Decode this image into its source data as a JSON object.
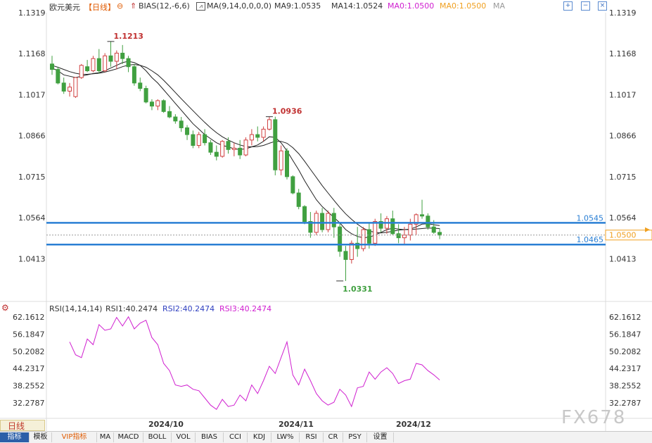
{
  "header": {
    "symbol": "欧元美元",
    "period": "【日线】",
    "bias_label": "BIAS(12,-6,6)",
    "ma_label": "MA(9,14,0,0,0,0)",
    "ma9": "MA9:1.0535",
    "ma14": "MA14:1.0524",
    "ma0a": "MA0:1.0500",
    "ma0b": "MA0:1.0500",
    "ma_tail": "MA",
    "colors": {
      "ma9": "#222222",
      "ma14": "#222222",
      "ma0a": "#d020d0",
      "ma0b": "#f0a020",
      "period": "#e05a00"
    }
  },
  "chart_data": [
    {
      "type": "candlestick",
      "title": "欧元美元",
      "y_ticks": [
        "1.1319",
        "1.1168",
        "1.1017",
        "1.0866",
        "1.0715",
        "1.0564",
        "1.0413"
      ],
      "y_tick_values": [
        1.1319,
        1.1168,
        1.1017,
        1.0866,
        1.0715,
        1.0564,
        1.0413
      ],
      "ylim": [
        1.031,
        1.1319
      ],
      "up_color": "#d04040",
      "down_color": "#40a040",
      "x_ticks": [
        "2024/10",
        "2024/11",
        "2024/12"
      ],
      "candles": [
        {
          "o": 1.113,
          "h": 1.116,
          "l": 1.109,
          "c": 1.111
        },
        {
          "o": 1.111,
          "h": 1.112,
          "l": 1.1055,
          "c": 1.106
        },
        {
          "o": 1.106,
          "h": 1.108,
          "l": 1.102,
          "c": 1.103
        },
        {
          "o": 1.103,
          "h": 1.106,
          "l": 1.101,
          "c": 1.1045
        },
        {
          "o": 1.101,
          "h": 1.107,
          "l": 1.1005,
          "c": 1.108
        },
        {
          "o": 1.108,
          "h": 1.113,
          "l": 1.1075,
          "c": 1.1125
        },
        {
          "o": 1.112,
          "h": 1.1145,
          "l": 1.11,
          "c": 1.1105
        },
        {
          "o": 1.1105,
          "h": 1.116,
          "l": 1.11,
          "c": 1.115
        },
        {
          "o": 1.115,
          "h": 1.1185,
          "l": 1.1095,
          "c": 1.1105
        },
        {
          "o": 1.1105,
          "h": 1.117,
          "l": 1.11,
          "c": 1.116
        },
        {
          "o": 1.116,
          "h": 1.1213,
          "l": 1.112,
          "c": 1.114
        },
        {
          "o": 1.114,
          "h": 1.118,
          "l": 1.111,
          "c": 1.117
        },
        {
          "o": 1.117,
          "h": 1.12,
          "l": 1.113,
          "c": 1.115
        },
        {
          "o": 1.115,
          "h": 1.116,
          "l": 1.11,
          "c": 1.112
        },
        {
          "o": 1.112,
          "h": 1.113,
          "l": 1.105,
          "c": 1.106
        },
        {
          "o": 1.106,
          "h": 1.108,
          "l": 1.103,
          "c": 1.104
        },
        {
          "o": 1.104,
          "h": 1.105,
          "l": 1.0985,
          "c": 1.099
        },
        {
          "o": 1.099,
          "h": 1.1,
          "l": 1.096,
          "c": 1.0975
        },
        {
          "o": 1.0975,
          "h": 1.1,
          "l": 1.096,
          "c": 1.0995
        },
        {
          "o": 1.0995,
          "h": 1.1,
          "l": 1.095,
          "c": 1.0955
        },
        {
          "o": 1.0955,
          "h": 1.0975,
          "l": 1.093,
          "c": 1.0935
        },
        {
          "o": 1.0935,
          "h": 1.0945,
          "l": 1.091,
          "c": 1.092
        },
        {
          "o": 1.092,
          "h": 1.0935,
          "l": 1.088,
          "c": 1.0895
        },
        {
          "o": 1.0895,
          "h": 1.0905,
          "l": 1.085,
          "c": 1.087
        },
        {
          "o": 1.087,
          "h": 1.0885,
          "l": 1.082,
          "c": 1.083
        },
        {
          "o": 1.083,
          "h": 1.088,
          "l": 1.082,
          "c": 1.087
        },
        {
          "o": 1.087,
          "h": 1.089,
          "l": 1.083,
          "c": 1.084
        },
        {
          "o": 1.084,
          "h": 1.085,
          "l": 1.0795,
          "c": 1.0805
        },
        {
          "o": 1.0805,
          "h": 1.083,
          "l": 1.0775,
          "c": 1.079
        },
        {
          "o": 1.079,
          "h": 1.085,
          "l": 1.0785,
          "c": 1.0845
        },
        {
          "o": 1.0845,
          "h": 1.086,
          "l": 1.08,
          "c": 1.0815
        },
        {
          "o": 1.0815,
          "h": 1.084,
          "l": 1.079,
          "c": 1.082
        },
        {
          "o": 1.082,
          "h": 1.085,
          "l": 1.078,
          "c": 1.0795
        },
        {
          "o": 1.0795,
          "h": 1.086,
          "l": 1.079,
          "c": 1.085
        },
        {
          "o": 1.085,
          "h": 1.089,
          "l": 1.083,
          "c": 1.087
        },
        {
          "o": 1.087,
          "h": 1.09,
          "l": 1.0845,
          "c": 1.086
        },
        {
          "o": 1.086,
          "h": 1.09,
          "l": 1.0845,
          "c": 1.089
        },
        {
          "o": 1.089,
          "h": 1.0936,
          "l": 1.0885,
          "c": 1.0925
        },
        {
          "o": 1.0925,
          "h": 1.0936,
          "l": 1.072,
          "c": 1.074
        },
        {
          "o": 1.074,
          "h": 1.083,
          "l": 1.072,
          "c": 1.081
        },
        {
          "o": 1.081,
          "h": 1.082,
          "l": 1.0705,
          "c": 1.0715
        },
        {
          "o": 1.0715,
          "h": 1.072,
          "l": 1.065,
          "c": 1.0655
        },
        {
          "o": 1.0655,
          "h": 1.067,
          "l": 1.0595,
          "c": 1.0605
        },
        {
          "o": 1.0605,
          "h": 1.061,
          "l": 1.054,
          "c": 1.055
        },
        {
          "o": 1.055,
          "h": 1.0585,
          "l": 1.049,
          "c": 1.051
        },
        {
          "o": 1.051,
          "h": 1.059,
          "l": 1.05,
          "c": 1.058
        },
        {
          "o": 1.058,
          "h": 1.06,
          "l": 1.051,
          "c": 1.052
        },
        {
          "o": 1.052,
          "h": 1.059,
          "l": 1.051,
          "c": 1.058
        },
        {
          "o": 1.058,
          "h": 1.06,
          "l": 1.049,
          "c": 1.053
        },
        {
          "o": 1.053,
          "h": 1.0545,
          "l": 1.042,
          "c": 1.044
        },
        {
          "o": 1.044,
          "h": 1.046,
          "l": 1.0331,
          "c": 1.041
        },
        {
          "o": 1.041,
          "h": 1.048,
          "l": 1.0395,
          "c": 1.047
        },
        {
          "o": 1.047,
          "h": 1.053,
          "l": 1.042,
          "c": 1.045
        },
        {
          "o": 1.045,
          "h": 1.053,
          "l": 1.044,
          "c": 1.052
        },
        {
          "o": 1.052,
          "h": 1.0545,
          "l": 1.045,
          "c": 1.047
        },
        {
          "o": 1.047,
          "h": 1.056,
          "l": 1.046,
          "c": 1.055
        },
        {
          "o": 1.055,
          "h": 1.058,
          "l": 1.051,
          "c": 1.0525
        },
        {
          "o": 1.0525,
          "h": 1.057,
          "l": 1.0505,
          "c": 1.056
        },
        {
          "o": 1.056,
          "h": 1.059,
          "l": 1.05,
          "c": 1.0505
        },
        {
          "o": 1.0505,
          "h": 1.054,
          "l": 1.047,
          "c": 1.049
        },
        {
          "o": 1.049,
          "h": 1.053,
          "l": 1.0465,
          "c": 1.05
        },
        {
          "o": 1.05,
          "h": 1.056,
          "l": 1.048,
          "c": 1.054
        },
        {
          "o": 1.054,
          "h": 1.058,
          "l": 1.05,
          "c": 1.0575
        },
        {
          "o": 1.0575,
          "h": 1.063,
          "l": 1.056,
          "c": 1.057
        },
        {
          "o": 1.057,
          "h": 1.058,
          "l": 1.052,
          "c": 1.053
        },
        {
          "o": 1.053,
          "h": 1.0555,
          "l": 1.0505,
          "c": 1.051
        },
        {
          "o": 1.051,
          "h": 1.0525,
          "l": 1.0485,
          "c": 1.05
        }
      ],
      "ma9": [
        1.1115,
        1.1105,
        1.109,
        1.1085,
        1.108,
        1.1085,
        1.109,
        1.1095,
        1.1098,
        1.1105,
        1.1115,
        1.1125,
        1.1135,
        1.114,
        1.1135,
        1.1125,
        1.1105,
        1.108,
        1.106,
        1.1035,
        1.101,
        1.0985,
        1.096,
        1.0935,
        1.091,
        1.089,
        1.087,
        1.0855,
        1.084,
        1.083,
        1.0825,
        1.0818,
        1.0815,
        1.0818,
        1.0825,
        1.0832,
        1.0845,
        1.0862,
        1.086,
        1.084,
        1.081,
        1.0775,
        1.074,
        1.07,
        1.0665,
        1.063,
        1.0605,
        1.0585,
        1.0565,
        1.0545,
        1.052,
        1.0505,
        1.0495,
        1.049,
        1.0492,
        1.05,
        1.051,
        1.052,
        1.0525,
        1.0522,
        1.052,
        1.0522,
        1.053,
        1.054,
        1.0542,
        1.0538,
        1.0535
      ],
      "ma14": [
        1.1125,
        1.1118,
        1.111,
        1.1102,
        1.1096,
        1.1092,
        1.1092,
        1.1094,
        1.1096,
        1.11,
        1.1106,
        1.1112,
        1.112,
        1.1126,
        1.1128,
        1.1125,
        1.1118,
        1.1105,
        1.109,
        1.107,
        1.1048,
        1.1025,
        1.1002,
        1.098,
        1.0958,
        1.0936,
        1.0915,
        1.0895,
        1.0877,
        1.0862,
        1.085,
        1.084,
        1.0832,
        1.0826,
        1.0825,
        1.0826,
        1.083,
        1.0838,
        1.0845,
        1.0845,
        1.0838,
        1.0822,
        1.08,
        1.0772,
        1.0742,
        1.0712,
        1.0682,
        1.0655,
        1.0628,
        1.0602,
        1.0578,
        1.0558,
        1.054,
        1.0525,
        1.0515,
        1.051,
        1.0508,
        1.051,
        1.0514,
        1.0518,
        1.052,
        1.052,
        1.0522,
        1.0524,
        1.0526,
        1.0525,
        1.0524
      ],
      "annotations": [
        {
          "label": "1.1213",
          "value": 1.1213,
          "index": 10
        },
        {
          "label": "1.0936",
          "value": 1.0936,
          "index": 37
        },
        {
          "label": "1.0331",
          "value": 1.0331,
          "index": 49
        }
      ],
      "hlines": [
        {
          "label": "1.0545",
          "value": 1.0545,
          "color": "#2a7fd4"
        },
        {
          "label": "1.0465",
          "value": 1.0465,
          "color": "#2a7fd4"
        }
      ],
      "current_price": {
        "label": "1.0500",
        "value": 1.05,
        "color": "#f0a020"
      }
    },
    {
      "type": "line",
      "title": "RSI(14,14,14)",
      "legend": [
        "RSI1:40.2474",
        "RSI2:40.2474",
        "RSI3:40.2474"
      ],
      "legend_colors": [
        "#222222",
        "#3040c0",
        "#d020d0"
      ],
      "y_ticks": [
        "62.1612",
        "56.1847",
        "50.2082",
        "44.2317",
        "38.2552",
        "32.2787"
      ],
      "y_tick_values": [
        62.1612,
        56.1847,
        50.2082,
        44.2317,
        38.2552,
        32.2787
      ],
      "ylim": [
        28.0,
        63.0
      ],
      "series": [
        {
          "name": "RSI3",
          "color": "#d020d0",
          "values": [
            53.5,
            49.0,
            48.0,
            54.5,
            52.5,
            59.5,
            57.5,
            58.0,
            62.0,
            59.0,
            62.2,
            58.0,
            60.0,
            61.0,
            55.0,
            52.5,
            46.0,
            43.5,
            38.5,
            38.0,
            38.5,
            37.0,
            36.5,
            34.0,
            31.5,
            30.0,
            33.5,
            31.0,
            31.5,
            35.0,
            33.0,
            38.5,
            35.5,
            40.0,
            45.0,
            42.5,
            48.0,
            53.5,
            42.0,
            38.5,
            44.0,
            40.0,
            35.5,
            33.0,
            31.5,
            32.5,
            37.0,
            35.0,
            31.0,
            37.5,
            38.0,
            43.0,
            40.5,
            43.0,
            44.5,
            42.5,
            39.0,
            40.0,
            40.5,
            46.0,
            45.5,
            43.5,
            42.0,
            40.2474
          ]
        }
      ]
    }
  ],
  "toolbar_icons": [
    "zoom-in-icon",
    "zoom-out-icon",
    "close-icon"
  ],
  "tabs": {
    "period": "日线",
    "items": [
      "指标",
      "模板",
      "VIP指标",
      "MA",
      "MACD",
      "BOLL",
      "VOL",
      "BIAS",
      "CCI",
      "KDJ",
      "LW%",
      "RSI",
      "CR",
      "PSY",
      "设置"
    ]
  },
  "watermark": "FX678"
}
